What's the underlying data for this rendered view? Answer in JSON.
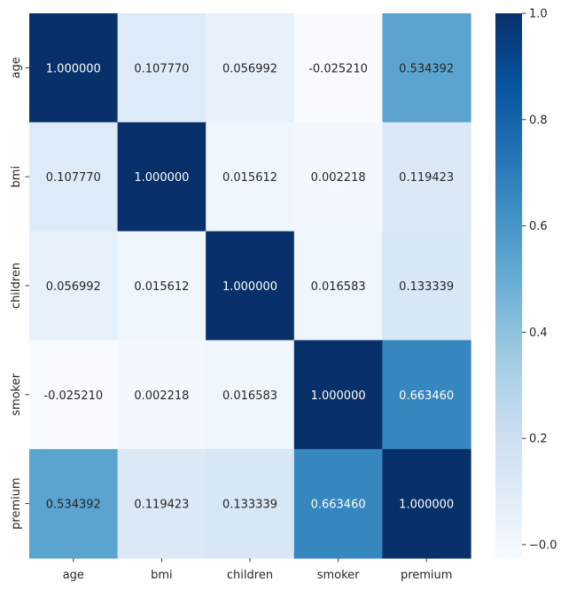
{
  "chart_data": {
    "type": "heatmap",
    "title": "",
    "xlabel": "",
    "ylabel": "",
    "x_categories": [
      "age",
      "bmi",
      "children",
      "smoker",
      "premium"
    ],
    "y_categories": [
      "age",
      "bmi",
      "children",
      "smoker",
      "premium"
    ],
    "values": [
      [
        1.0,
        0.10777,
        0.056992,
        -0.02521,
        0.534392
      ],
      [
        0.10777,
        1.0,
        0.015612,
        0.002218,
        0.119423
      ],
      [
        0.056992,
        0.015612,
        1.0,
        0.016583,
        0.133339
      ],
      [
        -0.02521,
        0.002218,
        0.016583,
        1.0,
        0.66346
      ],
      [
        0.534392,
        0.119423,
        0.133339,
        0.66346,
        1.0
      ]
    ],
    "cell_labels": [
      [
        "1.000000",
        "0.107770",
        "0.056992",
        "-0.025210",
        "0.534392"
      ],
      [
        "0.107770",
        "1.000000",
        "0.015612",
        "0.002218",
        "0.119423"
      ],
      [
        "0.056992",
        "0.015612",
        "1.000000",
        "0.016583",
        "0.133339"
      ],
      [
        "-0.025210",
        "0.002218",
        "0.016583",
        "1.000000",
        "0.663460"
      ],
      [
        "0.534392",
        "0.119423",
        "0.133339",
        "0.663460",
        "1.000000"
      ]
    ],
    "colormap": "Blues",
    "colormap_stops": [
      "#f7fbff",
      "#deebf7",
      "#c6dbef",
      "#9ecae1",
      "#6baed6",
      "#4292c6",
      "#2171b5",
      "#08519c",
      "#08306b"
    ],
    "value_range": [
      -0.02521,
      1.0
    ],
    "colorbar": {
      "ticks": [
        0.0,
        0.2,
        0.4,
        0.6,
        0.8,
        1.0
      ],
      "tick_labels": [
        "−0.0",
        "0.2",
        "0.4",
        "0.6",
        "0.8",
        "1.0"
      ]
    },
    "grid": false,
    "legend": "colorbar-right"
  }
}
